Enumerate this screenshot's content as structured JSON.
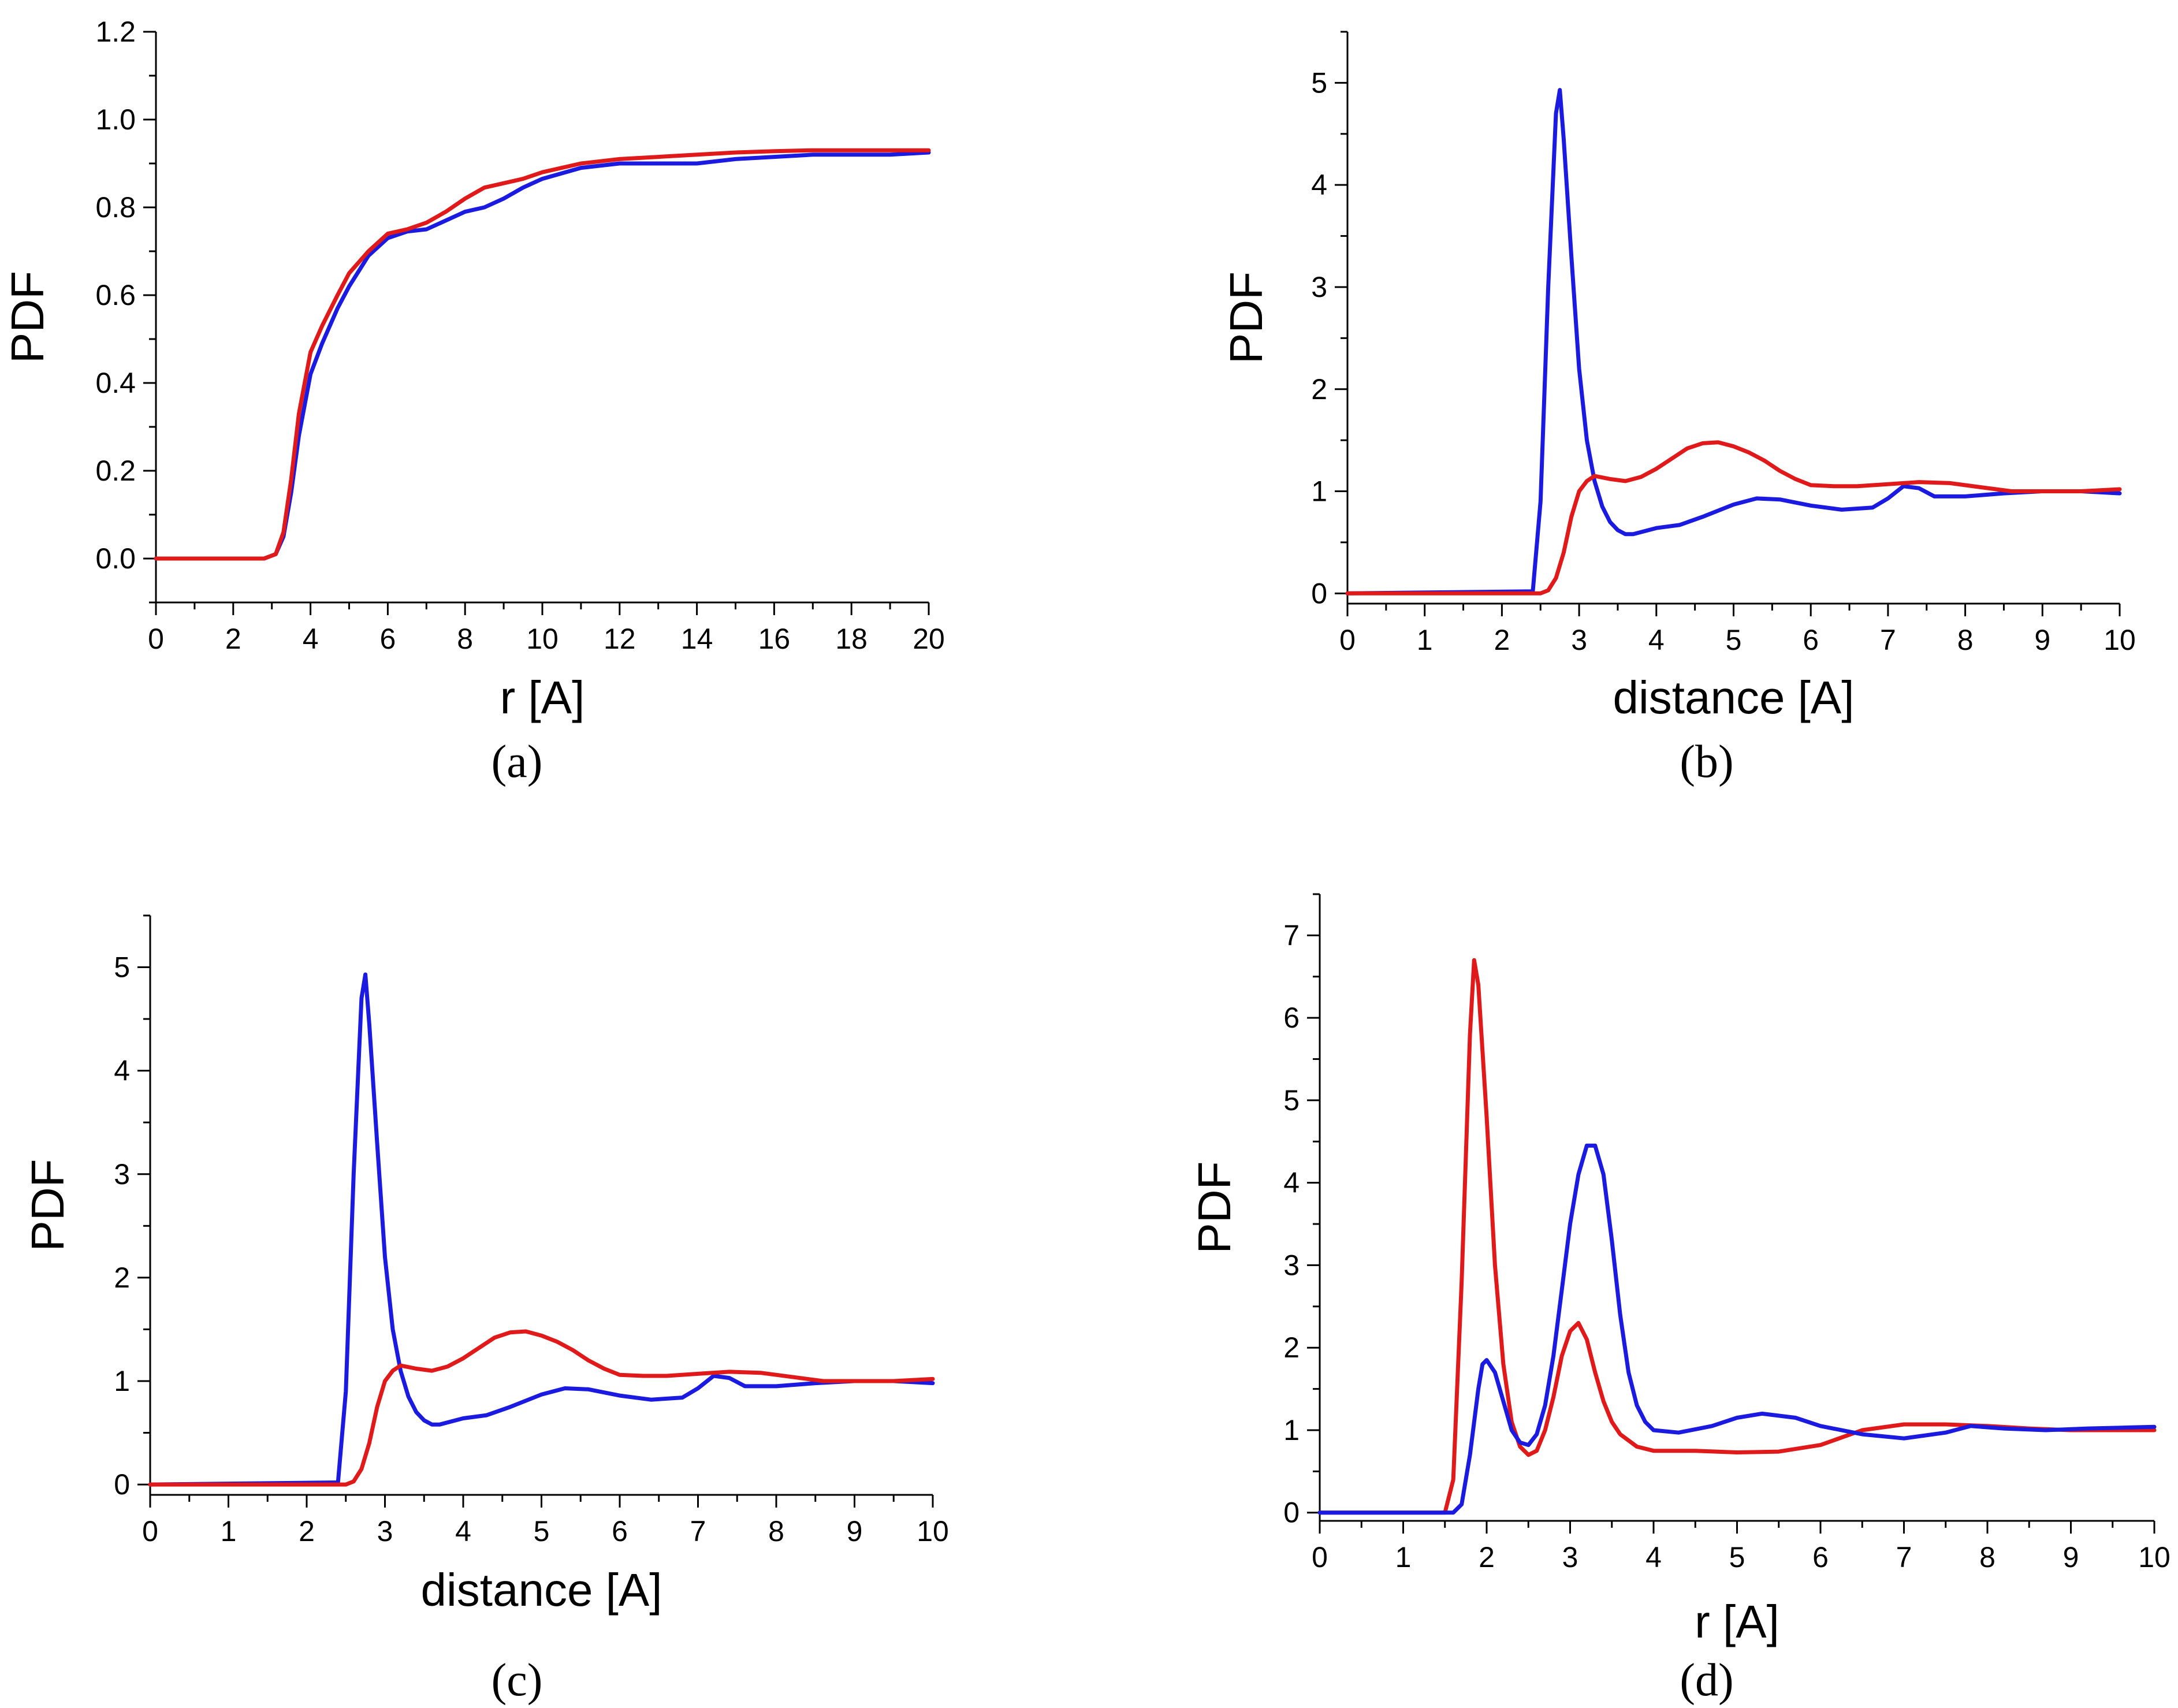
{
  "colors": {
    "series_red": "#e01a1a",
    "series_blue": "#1a1ae0",
    "axis": "#000000",
    "background": "#ffffff"
  },
  "chart_data": [
    {
      "type": "line",
      "panel_label": "(a)",
      "xlabel": "r [A]",
      "ylabel": "PDF",
      "xlim": [
        0,
        20
      ],
      "ylim": [
        -0.1,
        1.2
      ],
      "x_ticks": [
        0,
        2,
        4,
        6,
        8,
        10,
        12,
        14,
        16,
        18,
        20
      ],
      "x_tick_labels": [
        "0",
        "2",
        "4",
        "6",
        "8",
        "10",
        "12",
        "14",
        "16",
        "18",
        "20"
      ],
      "y_ticks": [
        0.0,
        0.2,
        0.4,
        0.6,
        0.8,
        1.0,
        1.2
      ],
      "y_tick_labels": [
        "0.0",
        "0.2",
        "0.4",
        "0.6",
        "0.8",
        "1.0",
        "1.2"
      ],
      "series": [
        {
          "name": "blue",
          "color": "#1a1ae0",
          "x": [
            0,
            2.8,
            3.1,
            3.3,
            3.5,
            3.7,
            4.0,
            4.3,
            4.7,
            5.0,
            5.5,
            6.0,
            6.5,
            7.0,
            7.5,
            8.0,
            8.5,
            9.0,
            9.5,
            10.0,
            11.0,
            12.0,
            13.0,
            14.0,
            15.0,
            16.0,
            17.0,
            18.0,
            19.0,
            20.0
          ],
          "y": [
            0,
            0,
            0.01,
            0.05,
            0.15,
            0.28,
            0.42,
            0.49,
            0.57,
            0.62,
            0.69,
            0.73,
            0.745,
            0.75,
            0.77,
            0.79,
            0.8,
            0.82,
            0.845,
            0.865,
            0.89,
            0.9,
            0.9,
            0.9,
            0.91,
            0.915,
            0.92,
            0.92,
            0.92,
            0.925
          ]
        },
        {
          "name": "red",
          "color": "#e01a1a",
          "x": [
            0,
            2.8,
            3.1,
            3.3,
            3.5,
            3.7,
            4.0,
            4.3,
            4.7,
            5.0,
            5.5,
            6.0,
            6.5,
            7.0,
            7.5,
            8.0,
            8.5,
            9.0,
            9.5,
            10.0,
            11.0,
            12.0,
            13.0,
            14.0,
            15.0,
            16.0,
            17.0,
            18.0,
            19.0,
            20.0
          ],
          "y": [
            0,
            0,
            0.01,
            0.06,
            0.18,
            0.33,
            0.47,
            0.53,
            0.6,
            0.65,
            0.7,
            0.74,
            0.75,
            0.765,
            0.79,
            0.82,
            0.845,
            0.855,
            0.865,
            0.88,
            0.9,
            0.91,
            0.915,
            0.92,
            0.925,
            0.928,
            0.93,
            0.93,
            0.93,
            0.93
          ]
        }
      ]
    },
    {
      "type": "line",
      "panel_label": "(b)",
      "xlabel": "distance [A]",
      "ylabel": "PDF",
      "xlim": [
        0,
        10
      ],
      "ylim": [
        -0.1,
        5.5
      ],
      "x_ticks": [
        0,
        1,
        2,
        3,
        4,
        5,
        6,
        7,
        8,
        9,
        10
      ],
      "x_tick_labels": [
        "0",
        "1",
        "2",
        "3",
        "4",
        "5",
        "6",
        "7",
        "8",
        "9",
        "10"
      ],
      "y_ticks": [
        0,
        1,
        2,
        3,
        4,
        5
      ],
      "y_tick_labels": [
        "0",
        "1",
        "2",
        "3",
        "4",
        "5"
      ],
      "series": [
        {
          "name": "blue",
          "color": "#1a1ae0",
          "x": [
            0,
            2.4,
            2.5,
            2.6,
            2.7,
            2.75,
            2.8,
            2.9,
            3.0,
            3.1,
            3.2,
            3.3,
            3.4,
            3.5,
            3.6,
            3.7,
            4.0,
            4.3,
            4.6,
            5.0,
            5.3,
            5.6,
            6.0,
            6.4,
            6.8,
            7.0,
            7.2,
            7.4,
            7.6,
            8.0,
            8.5,
            9.0,
            9.5,
            10.0
          ],
          "y": [
            0,
            0.02,
            0.9,
            3.0,
            4.7,
            4.93,
            4.45,
            3.3,
            2.2,
            1.5,
            1.1,
            0.85,
            0.7,
            0.62,
            0.58,
            0.58,
            0.64,
            0.67,
            0.75,
            0.87,
            0.93,
            0.92,
            0.86,
            0.82,
            0.84,
            0.93,
            1.05,
            1.03,
            0.95,
            0.95,
            0.98,
            1.0,
            1.0,
            0.98
          ]
        },
        {
          "name": "red",
          "color": "#e01a1a",
          "x": [
            0,
            2.5,
            2.6,
            2.7,
            2.8,
            2.9,
            3.0,
            3.1,
            3.2,
            3.4,
            3.6,
            3.8,
            4.0,
            4.2,
            4.4,
            4.6,
            4.8,
            5.0,
            5.2,
            5.4,
            5.6,
            5.8,
            6.0,
            6.3,
            6.6,
            7.0,
            7.4,
            7.8,
            8.2,
            8.6,
            9.0,
            9.5,
            10.0
          ],
          "y": [
            0,
            0,
            0.03,
            0.15,
            0.4,
            0.75,
            1.0,
            1.1,
            1.15,
            1.12,
            1.1,
            1.14,
            1.22,
            1.32,
            1.42,
            1.47,
            1.48,
            1.44,
            1.38,
            1.3,
            1.2,
            1.12,
            1.06,
            1.05,
            1.05,
            1.07,
            1.09,
            1.08,
            1.04,
            1.0,
            1.0,
            1.0,
            1.02
          ]
        }
      ]
    },
    {
      "type": "line",
      "panel_label": "(c)",
      "xlabel": "distance [A]",
      "ylabel": "PDF",
      "xlim": [
        0,
        10
      ],
      "ylim": [
        -0.1,
        5.5
      ],
      "x_ticks": [
        0,
        1,
        2,
        3,
        4,
        5,
        6,
        7,
        8,
        9,
        10
      ],
      "x_tick_labels": [
        "0",
        "1",
        "2",
        "3",
        "4",
        "5",
        "6",
        "7",
        "8",
        "9",
        "10"
      ],
      "y_ticks": [
        0,
        1,
        2,
        3,
        4,
        5
      ],
      "y_tick_labels": [
        "0",
        "1",
        "2",
        "3",
        "4",
        "5"
      ],
      "series": [
        {
          "name": "blue",
          "color": "#1a1ae0",
          "x": [
            0,
            2.4,
            2.5,
            2.6,
            2.7,
            2.75,
            2.8,
            2.9,
            3.0,
            3.1,
            3.2,
            3.3,
            3.4,
            3.5,
            3.6,
            3.7,
            4.0,
            4.3,
            4.6,
            5.0,
            5.3,
            5.6,
            6.0,
            6.4,
            6.8,
            7.0,
            7.2,
            7.4,
            7.6,
            8.0,
            8.5,
            9.0,
            9.5,
            10.0
          ],
          "y": [
            0,
            0.02,
            0.9,
            3.0,
            4.7,
            4.93,
            4.45,
            3.3,
            2.2,
            1.5,
            1.1,
            0.85,
            0.7,
            0.62,
            0.58,
            0.58,
            0.64,
            0.67,
            0.75,
            0.87,
            0.93,
            0.92,
            0.86,
            0.82,
            0.84,
            0.93,
            1.05,
            1.03,
            0.95,
            0.95,
            0.98,
            1.0,
            1.0,
            0.98
          ]
        },
        {
          "name": "red",
          "color": "#e01a1a",
          "x": [
            0,
            2.5,
            2.6,
            2.7,
            2.8,
            2.9,
            3.0,
            3.1,
            3.2,
            3.4,
            3.6,
            3.8,
            4.0,
            4.2,
            4.4,
            4.6,
            4.8,
            5.0,
            5.2,
            5.4,
            5.6,
            5.8,
            6.0,
            6.3,
            6.6,
            7.0,
            7.4,
            7.8,
            8.2,
            8.6,
            9.0,
            9.5,
            10.0
          ],
          "y": [
            0,
            0,
            0.03,
            0.15,
            0.4,
            0.75,
            1.0,
            1.1,
            1.15,
            1.12,
            1.1,
            1.14,
            1.22,
            1.32,
            1.42,
            1.47,
            1.48,
            1.44,
            1.38,
            1.3,
            1.2,
            1.12,
            1.06,
            1.05,
            1.05,
            1.07,
            1.09,
            1.08,
            1.04,
            1.0,
            1.0,
            1.0,
            1.02
          ]
        }
      ]
    },
    {
      "type": "line",
      "panel_label": "(d)",
      "xlabel": "r [A]",
      "ylabel": "PDF",
      "xlim": [
        0,
        10
      ],
      "ylim": [
        -0.1,
        7.5
      ],
      "x_ticks": [
        0,
        1,
        2,
        3,
        4,
        5,
        6,
        7,
        8,
        9,
        10
      ],
      "x_tick_labels": [
        "0",
        "1",
        "2",
        "3",
        "4",
        "5",
        "6",
        "7",
        "8",
        "9",
        "10"
      ],
      "y_ticks": [
        0,
        1,
        2,
        3,
        4,
        5,
        6,
        7
      ],
      "y_tick_labels": [
        "0",
        "1",
        "2",
        "3",
        "4",
        "5",
        "6",
        "7"
      ],
      "series": [
        {
          "name": "red",
          "color": "#e01a1a",
          "x": [
            0,
            1.5,
            1.6,
            1.7,
            1.8,
            1.85,
            1.9,
            2.0,
            2.1,
            2.2,
            2.3,
            2.4,
            2.5,
            2.6,
            2.7,
            2.8,
            2.9,
            3.0,
            3.1,
            3.2,
            3.3,
            3.4,
            3.5,
            3.6,
            3.8,
            4.0,
            4.5,
            5.0,
            5.5,
            6.0,
            6.5,
            7.0,
            7.5,
            8.0,
            8.5,
            9.0,
            9.5,
            10.0
          ],
          "y": [
            0,
            0,
            0.4,
            2.8,
            5.8,
            6.7,
            6.4,
            4.8,
            3.0,
            1.8,
            1.1,
            0.8,
            0.7,
            0.75,
            1.0,
            1.4,
            1.9,
            2.2,
            2.3,
            2.1,
            1.7,
            1.35,
            1.1,
            0.95,
            0.8,
            0.75,
            0.75,
            0.73,
            0.74,
            0.82,
            1.0,
            1.07,
            1.07,
            1.05,
            1.02,
            1.0,
            1.0,
            1.0
          ]
        },
        {
          "name": "blue",
          "color": "#1a1ae0",
          "x": [
            0,
            1.6,
            1.7,
            1.8,
            1.9,
            1.95,
            2.0,
            2.1,
            2.2,
            2.3,
            2.4,
            2.5,
            2.6,
            2.7,
            2.8,
            2.9,
            3.0,
            3.1,
            3.2,
            3.3,
            3.4,
            3.5,
            3.6,
            3.7,
            3.8,
            3.9,
            4.0,
            4.3,
            4.7,
            5.0,
            5.3,
            5.7,
            6.0,
            6.5,
            7.0,
            7.5,
            7.8,
            8.2,
            8.7,
            9.2,
            9.6,
            10.0
          ],
          "y": [
            0,
            0,
            0.1,
            0.7,
            1.5,
            1.8,
            1.85,
            1.7,
            1.35,
            1.0,
            0.85,
            0.82,
            0.95,
            1.3,
            1.9,
            2.7,
            3.5,
            4.1,
            4.45,
            4.45,
            4.1,
            3.3,
            2.4,
            1.7,
            1.3,
            1.1,
            1.0,
            0.97,
            1.05,
            1.15,
            1.2,
            1.15,
            1.05,
            0.95,
            0.9,
            0.97,
            1.05,
            1.02,
            1.0,
            1.02,
            1.03,
            1.04
          ]
        }
      ]
    }
  ]
}
